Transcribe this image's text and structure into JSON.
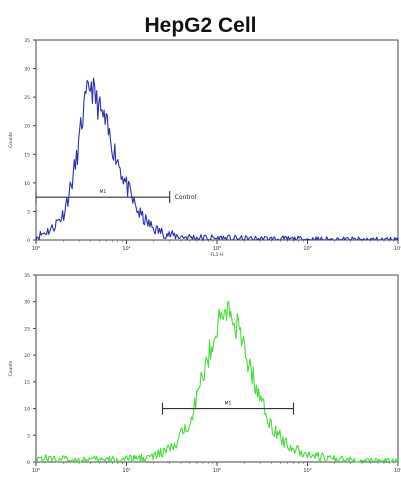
{
  "chart_data": [
    {
      "type": "line",
      "title": "HepG2  Cell",
      "xscale": "log",
      "xlim": [
        1,
        10000
      ],
      "x_tick_labels": [
        "10⁰",
        "10¹",
        "10²",
        "10³",
        "10⁴"
      ],
      "xlabel": "FL1-H",
      "ylim": [
        0,
        35
      ],
      "y_tick_labels": [
        "0",
        "5",
        "10",
        "15",
        "20",
        "25",
        "30",
        "35"
      ],
      "ylabel": "Counts",
      "grid": false,
      "color": "#2b2fb0",
      "series": [
        {
          "x": [
            1,
            1.5,
            2,
            2.4,
            2.8,
            3.1,
            3.4,
            3.7,
            4,
            4.3,
            4.6,
            5,
            5.5,
            6,
            6.5,
            7,
            8,
            9,
            10,
            12,
            14,
            17,
            20,
            25,
            30,
            40,
            60,
            100,
            200,
            500,
            1000,
            3000,
            10000
          ],
          "y": [
            0.5,
            2,
            4.5,
            9,
            14,
            19,
            23,
            25.5,
            27.5,
            26,
            24.5,
            23,
            21.5,
            20,
            18,
            16.5,
            14,
            11.5,
            9.5,
            6.5,
            4.5,
            3,
            2,
            1.3,
            0.9,
            0.6,
            0.4,
            0.3,
            0.2,
            0.15,
            0.1,
            0.05,
            0.05
          ]
        }
      ],
      "marker": {
        "label": "M1",
        "x_start": 1,
        "x_end": 30,
        "y": 7.5,
        "annotation": "Control"
      }
    },
    {
      "type": "line",
      "xscale": "log",
      "xlim": [
        1,
        10000
      ],
      "x_tick_labels": [
        "10⁰",
        "10¹",
        "10²",
        "10³",
        "10⁴"
      ],
      "ylim": [
        0,
        35
      ],
      "y_tick_labels": [
        "0",
        "5",
        "10",
        "15",
        "20",
        "25",
        "30",
        "35"
      ],
      "ylabel": "Counts",
      "grid": false,
      "color": "#44dd3a",
      "series": [
        {
          "x": [
            1,
            2,
            5,
            10,
            20,
            35,
            50,
            70,
            90,
            110,
            130,
            150,
            170,
            200,
            250,
            300,
            350,
            400,
            500,
            700,
            1000,
            1500,
            2000,
            3000,
            5000,
            10000
          ],
          "y": [
            0.8,
            0.5,
            0.4,
            0.5,
            1,
            3,
            8,
            16,
            23,
            27,
            28.5,
            27,
            25,
            21,
            16,
            12,
            9,
            7,
            4.5,
            2.5,
            1.5,
            0.8,
            0.5,
            0.3,
            0.2,
            0.1
          ]
        }
      ],
      "marker": {
        "label": "M1",
        "x_start": 25,
        "x_end": 700,
        "y": 10
      }
    }
  ]
}
